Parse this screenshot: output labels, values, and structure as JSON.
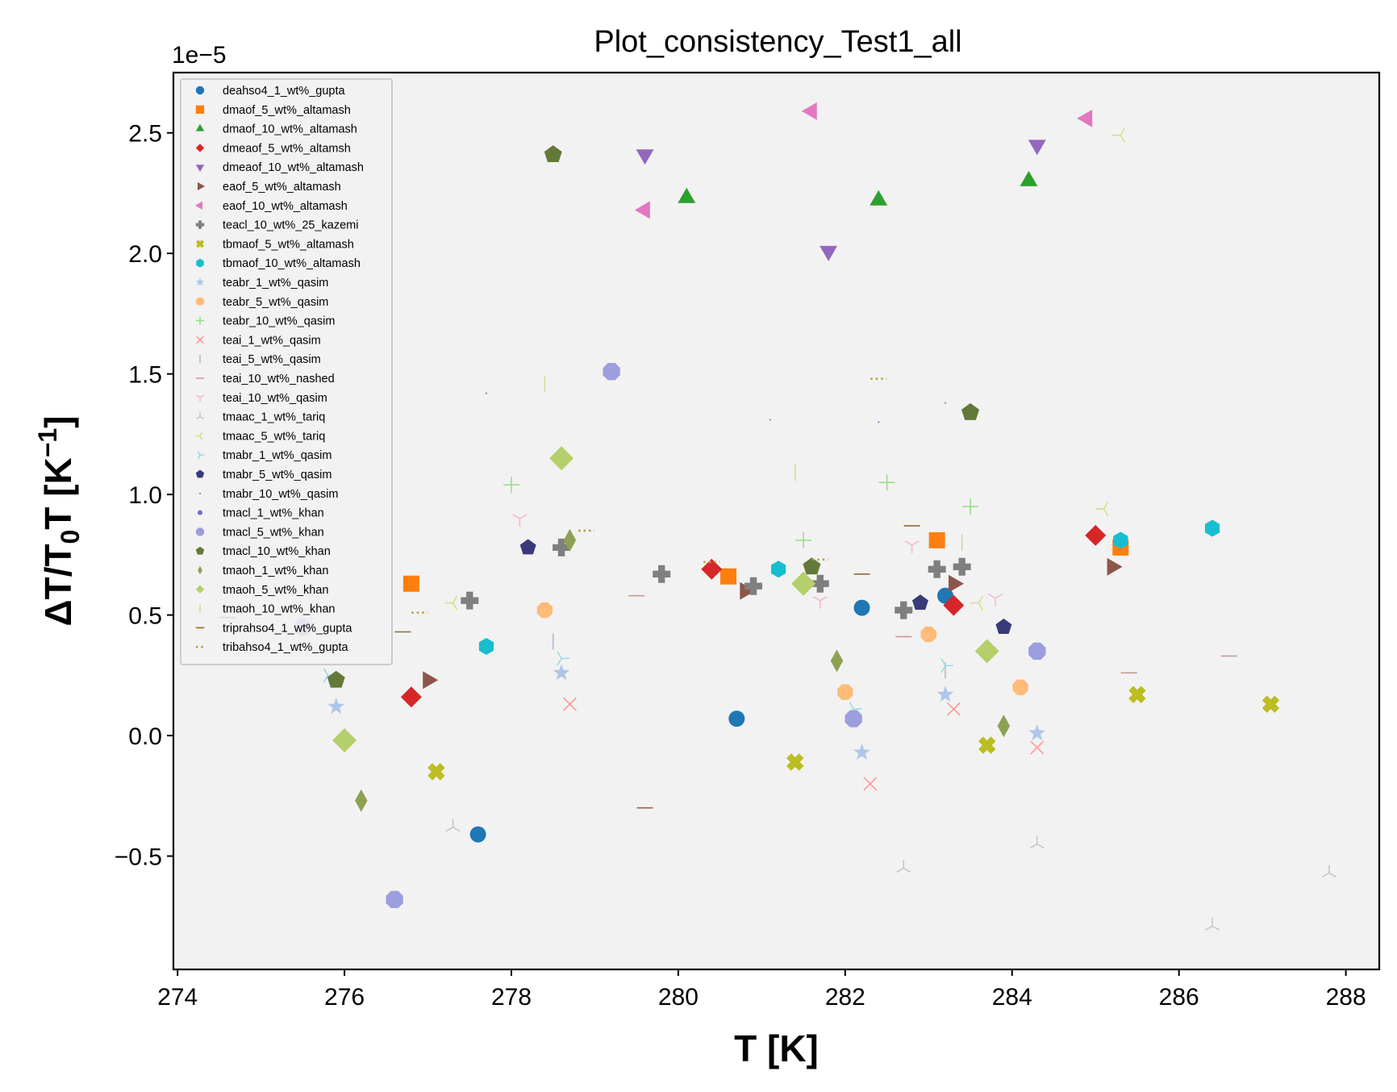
{
  "chart_data": {
    "type": "scatter",
    "title": "Plot_consistency_Test1_all",
    "xlabel": "T [K]",
    "ylabel": "ΔT/T₀T [K⁻¹]",
    "offset_text": "1e−5",
    "xlim": [
      273.95,
      288.4
    ],
    "ylim": [
      -0.97,
      2.75
    ],
    "y_scale_factor": "1e-5",
    "x_ticks": [
      274,
      276,
      278,
      280,
      282,
      284,
      286,
      288
    ],
    "y_ticks": [
      -0.5,
      0.0,
      0.5,
      1.0,
      1.5,
      2.0,
      2.5
    ],
    "y_tick_labels": [
      "−0.5",
      "0.0",
      "0.5",
      "1.0",
      "1.5",
      "2.0",
      "2.5"
    ],
    "grid": false,
    "legend_position": "upper-left",
    "background": "#f2f2f2",
    "series": [
      {
        "name": "deahso4_1_wt%_gupta",
        "marker": "circle",
        "color": "#1f77b4",
        "size": 10,
        "x": [
          277.6,
          280.7,
          282.2,
          283.2
        ],
        "y": [
          -0.41,
          0.07,
          0.53,
          0.58
        ]
      },
      {
        "name": "dmaof_5_wt%_altamash",
        "marker": "square",
        "color": "#ff7f0e",
        "size": 10,
        "x": [
          276.8,
          280.6,
          283.1,
          285.3
        ],
        "y": [
          0.63,
          0.66,
          0.81,
          0.78
        ]
      },
      {
        "name": "dmaof_10_wt%_altamash",
        "marker": "triangle-up",
        "color": "#2ca02c",
        "size": 11,
        "x": [
          280.1,
          282.4,
          284.2
        ],
        "y": [
          2.23,
          2.22,
          2.3
        ]
      },
      {
        "name": "dmeaof_5_wt%_altamsh",
        "marker": "diamond",
        "color": "#d62728",
        "size": 13,
        "x": [
          276.8,
          280.4,
          283.3,
          285.0
        ],
        "y": [
          0.16,
          0.69,
          0.54,
          0.83
        ]
      },
      {
        "name": "dmeaof_10_wt%_altamash",
        "marker": "triangle-down",
        "color": "#9467bd",
        "size": 11,
        "x": [
          279.6,
          281.8,
          284.3
        ],
        "y": [
          2.41,
          2.01,
          2.45
        ]
      },
      {
        "name": "eaof_5_wt%_altamash",
        "marker": "triangle-right",
        "color": "#8c564b",
        "size": 11,
        "x": [
          277.0,
          280.8,
          283.3,
          285.2
        ],
        "y": [
          0.23,
          0.6,
          0.63,
          0.7
        ]
      },
      {
        "name": "eaof_10_wt%_altamash",
        "marker": "triangle-left",
        "color": "#e377c2",
        "size": 11,
        "x": [
          279.6,
          281.6,
          284.9
        ],
        "y": [
          2.18,
          2.59,
          2.56
        ]
      },
      {
        "name": "teacl_10_wt%_25_kazemi",
        "marker": "plus-filled",
        "color": "#7f7f7f",
        "size": 11,
        "x": [
          277.5,
          278.6,
          279.8,
          280.9,
          281.7,
          282.7,
          283.1,
          283.4
        ],
        "y": [
          0.56,
          0.78,
          0.67,
          0.62,
          0.63,
          0.52,
          0.69,
          0.7
        ]
      },
      {
        "name": "tbmaof_5_wt%_altamash",
        "marker": "x-filled",
        "color": "#bcbd22",
        "size": 11,
        "x": [
          277.1,
          281.4,
          283.7,
          285.5,
          287.1
        ],
        "y": [
          -0.15,
          -0.11,
          -0.04,
          0.17,
          0.13
        ]
      },
      {
        "name": "tbmaof_10_wt%_altamash",
        "marker": "hexagon",
        "color": "#17becf",
        "size": 10,
        "x": [
          277.7,
          281.2,
          285.3,
          286.4
        ],
        "y": [
          0.37,
          0.69,
          0.81,
          0.86
        ]
      },
      {
        "name": "teabr_1_wt%_qasim",
        "marker": "star",
        "color": "#aec7e8",
        "size": 10,
        "x": [
          275.9,
          278.6,
          282.2,
          283.2,
          284.3
        ],
        "y": [
          0.12,
          0.26,
          -0.07,
          0.17,
          0.01
        ]
      },
      {
        "name": "teabr_5_wt%_qasim",
        "marker": "octagon",
        "color": "#ffbb78",
        "size": 10,
        "x": [
          278.4,
          282.0,
          283.0,
          284.1
        ],
        "y": [
          0.52,
          0.18,
          0.42,
          0.2
        ]
      },
      {
        "name": "teabr_10_wt%_qasim",
        "marker": "plus",
        "color": "#98df8a",
        "size": 10,
        "x": [
          278.0,
          281.5,
          282.5,
          283.5
        ],
        "y": [
          1.04,
          0.81,
          1.05,
          0.95
        ]
      },
      {
        "name": "teai_1_wt%_qasim",
        "marker": "x",
        "color": "#ff9896",
        "size": 10,
        "x": [
          278.7,
          282.3,
          283.3,
          284.3
        ],
        "y": [
          0.13,
          -0.2,
          0.11,
          -0.05
        ]
      },
      {
        "name": "teai_5_wt%_qasim",
        "marker": "vline",
        "color": "#c5b0d5",
        "size": 10,
        "x": [
          275.6,
          278.5,
          283.2
        ],
        "y": [
          0.47,
          0.39,
          0.27
        ]
      },
      {
        "name": "teai_10_wt%_nashed",
        "marker": "hline",
        "color": "#c49c94",
        "size": 10,
        "x": [
          279.5,
          282.7,
          285.4,
          286.6
        ],
        "y": [
          0.58,
          0.41,
          0.26,
          0.33
        ]
      },
      {
        "name": "teai_10_wt%_qasim",
        "marker": "tri-down",
        "color": "#f7b6d2",
        "size": 10,
        "x": [
          278.1,
          281.7,
          282.8,
          283.8
        ],
        "y": [
          0.9,
          0.56,
          0.79,
          0.57
        ]
      },
      {
        "name": "tmaac_1_wt%_tariq",
        "marker": "tri-up",
        "color": "#c7c7c7",
        "size": 10,
        "x": [
          277.3,
          282.7,
          284.3,
          286.4,
          287.8
        ],
        "y": [
          -0.38,
          -0.55,
          -0.45,
          -0.79,
          -0.57
        ]
      },
      {
        "name": "tmaac_5_wt%_tariq",
        "marker": "tri-left",
        "color": "#dbdb8d",
        "size": 10,
        "x": [
          277.3,
          283.6,
          285.1,
          285.3
        ],
        "y": [
          0.55,
          0.55,
          0.94,
          2.49
        ]
      },
      {
        "name": "tmabr_1_wt%_qasim",
        "marker": "tri-right",
        "color": "#9edae5",
        "size": 10,
        "x": [
          275.8,
          278.6,
          282.1,
          283.2
        ],
        "y": [
          0.25,
          0.32,
          0.11,
          0.29
        ]
      },
      {
        "name": "tmabr_5_wt%_qasim",
        "marker": "pentagon",
        "color": "#393b79",
        "size": 10,
        "x": [
          278.2,
          282.9,
          283.9
        ],
        "y": [
          0.78,
          0.55,
          0.45
        ]
      },
      {
        "name": "tmabr_10_wt%_qasim",
        "marker": "pixel",
        "color": "#5254a3",
        "size": 2,
        "x": [
          277.7,
          281.1,
          282.4,
          283.2
        ],
        "y": [
          1.42,
          1.31,
          1.3,
          1.38
        ]
      },
      {
        "name": "tmacl_1_wt%_khan",
        "marker": "dot",
        "color": "#6b6ecf",
        "size": 4,
        "x": [],
        "y": []
      },
      {
        "name": "tmacl_5_wt%_khan",
        "marker": "octagon",
        "color": "#9c9ede",
        "size": 11,
        "x": [
          275.5,
          276.6,
          279.2,
          282.1,
          284.3
        ],
        "y": [
          0.45,
          -0.68,
          1.51,
          0.07,
          0.35
        ]
      },
      {
        "name": "tmacl_10_wt%_khan",
        "marker": "pentagon",
        "color": "#637939",
        "size": 11,
        "x": [
          275.9,
          278.5,
          281.6,
          283.5
        ],
        "y": [
          0.23,
          2.41,
          0.7,
          1.34
        ]
      },
      {
        "name": "tmaoh_1_wt%_khan",
        "marker": "thin-diamond",
        "color": "#8ca252",
        "size": 14,
        "x": [
          276.2,
          278.7,
          281.9,
          283.9
        ],
        "y": [
          -0.27,
          0.81,
          0.31,
          0.04
        ]
      },
      {
        "name": "tmaoh_5_wt%_khan",
        "marker": "diamond",
        "color": "#b5cf6b",
        "size": 15,
        "x": [
          276.0,
          278.6,
          281.5,
          283.7
        ],
        "y": [
          -0.02,
          1.15,
          0.63,
          0.35
        ]
      },
      {
        "name": "tmaoh_10_wt%_khan",
        "marker": "vline",
        "color": "#cedb9c",
        "size": 10,
        "x": [
          278.4,
          281.4,
          283.4
        ],
        "y": [
          1.46,
          1.09,
          0.8
        ]
      },
      {
        "name": "triprahso4_1_wt%_gupta",
        "marker": "hline",
        "color": "#8c6d31",
        "size": 10,
        "x": [
          274.6,
          276.7,
          279.6,
          282.2,
          282.8
        ],
        "y": [
          0.49,
          0.43,
          -0.3,
          0.67,
          0.87
        ]
      },
      {
        "name": "tribahso4_1_wt%_gupta",
        "marker": "dots",
        "color": "#bd9e39",
        "size": 10,
        "x": [
          276.9,
          278.9,
          280.4,
          281.7,
          282.4
        ],
        "y": [
          0.51,
          0.85,
          0.72,
          0.73,
          1.48
        ]
      }
    ]
  }
}
